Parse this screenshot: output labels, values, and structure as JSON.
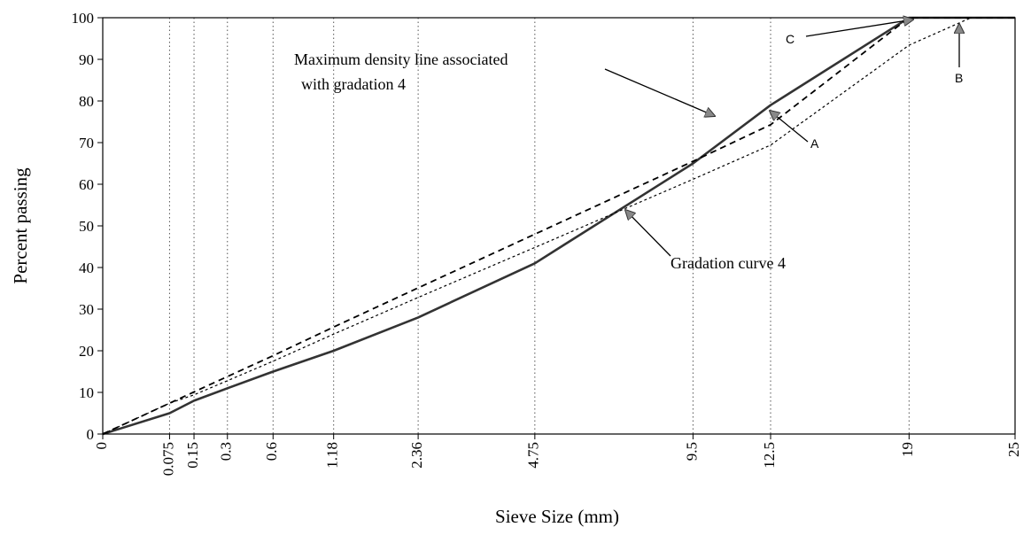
{
  "chart_data": {
    "type": "line",
    "title": "",
    "xlabel": "Sieve Size (mm)",
    "ylabel": "Percent passing",
    "x_scale": "power_0.45",
    "xlim": [
      0,
      25
    ],
    "ylim": [
      0,
      100
    ],
    "y_ticks": [
      0,
      10,
      20,
      30,
      40,
      50,
      60,
      70,
      80,
      90,
      100
    ],
    "x_ticks": [
      {
        "value": 0,
        "label": "0"
      },
      {
        "value": 0.075,
        "label": "0.075"
      },
      {
        "value": 0.15,
        "label": "0.15"
      },
      {
        "value": 0.3,
        "label": "0.3"
      },
      {
        "value": 0.6,
        "label": "0.6"
      },
      {
        "value": 1.18,
        "label": "1.18"
      },
      {
        "value": 2.36,
        "label": "2.36"
      },
      {
        "value": 4.75,
        "label": "4.75"
      },
      {
        "value": 9.5,
        "label": "9.5"
      },
      {
        "value": 12.5,
        "label": "12.5"
      },
      {
        "value": 19,
        "label": "19"
      },
      {
        "value": 25,
        "label": "25"
      }
    ],
    "grid": {
      "vertical": true,
      "horizontal": false,
      "style": "dotted"
    },
    "series": [
      {
        "style": "solid",
        "x": [
          0,
          0.075,
          0.15,
          0.3,
          0.6,
          1.18,
          2.36,
          4.75,
          9.5,
          12.5,
          19,
          25
        ],
        "y": [
          0,
          5,
          8,
          11,
          15,
          20,
          28,
          41,
          65,
          79,
          100,
          100
        ]
      },
      {
        "style": "dashed",
        "x": [
          0,
          0.075,
          0.15,
          0.3,
          0.6,
          1.18,
          2.36,
          4.75,
          9.5,
          12.5,
          19,
          25
        ],
        "y": [
          0,
          7.4,
          10.1,
          13.8,
          18.8,
          25.7,
          35.1,
          48.0,
          65.5,
          74.3,
          100,
          100
        ]
      },
      {
        "style": "dotted",
        "x": [
          0,
          0.075,
          0.15,
          0.3,
          0.6,
          1.18,
          2.36,
          4.75,
          9.5,
          12.5,
          19,
          22.4
        ],
        "y": [
          0,
          7.4,
          9.4,
          12.8,
          17.5,
          24.0,
          32.8,
          44.8,
          61.2,
          69.4,
          93.4,
          100
        ]
      }
    ],
    "annotations": [
      {
        "id": "max-density",
        "text_lines": [
          "Maximum density line associated",
          "with gradation 4"
        ],
        "points_to": [
          10,
          76
        ]
      },
      {
        "id": "gradation",
        "text_lines": [
          "Gradation curve 4"
        ],
        "points_to": [
          8,
          55
        ]
      },
      {
        "id": "A",
        "text_lines": [
          "A"
        ],
        "points_to": [
          13,
          78
        ]
      },
      {
        "id": "B",
        "text_lines": [
          "B"
        ],
        "points_to": [
          22.4,
          100
        ]
      },
      {
        "id": "C",
        "text_lines": [
          "C"
        ],
        "points_to": [
          19.2,
          100
        ]
      }
    ]
  }
}
